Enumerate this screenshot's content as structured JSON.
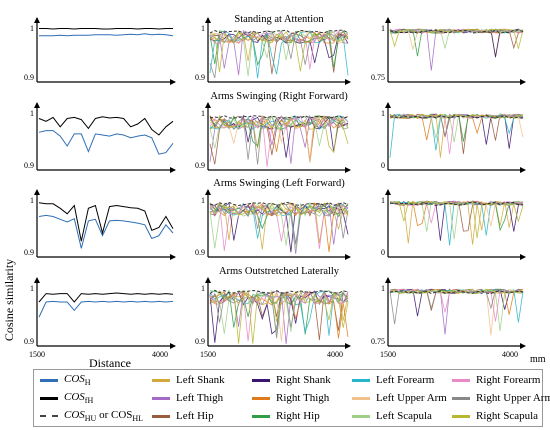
{
  "ylabel": "Cosine similarity",
  "xlabel": "Distance",
  "xunit": "mm",
  "chart_data": {
    "type": "line",
    "x_ticks": [
      1500,
      4000
    ],
    "rows": [
      {
        "title": "Standing at Attention",
        "panels": [
          {
            "y_ticks": [
              "1",
              "0.9"
            ],
            "ylim": [
              0.9,
              1.0
            ],
            "series": [
              {
                "key": "COS_H",
                "values": [
                  0.985,
                  0.985,
                  0.985,
                  0.986,
                  0.985,
                  0.986,
                  0.986,
                  0.986,
                  0.987,
                  0.987,
                  0.987,
                  0.986,
                  0.987,
                  0.988,
                  0.987,
                  0.989,
                  0.987,
                  0.988,
                  0.987,
                  0.985
                ]
              },
              {
                "key": "COS_fH",
                "values": [
                  0.999,
                  0.999,
                  0.998,
                  0.999,
                  0.999,
                  0.998,
                  0.999,
                  0.999,
                  0.999,
                  0.998,
                  0.998,
                  0.999,
                  0.999,
                  0.999,
                  0.998,
                  0.999,
                  0.999,
                  0.998,
                  0.999,
                  0.999
                ]
              }
            ]
          },
          {
            "y_ticks": [
              "1",
              "0.9"
            ],
            "ylim": [
              0.9,
              1.0
            ],
            "dense": true
          },
          {
            "y_ticks": [
              "1",
              "0.75"
            ],
            "ylim": [
              0.75,
              1.0
            ],
            "dense": true
          }
        ]
      },
      {
        "title": "Arms Swinging (Right Forward)",
        "panels": [
          {
            "y_ticks": [
              "1",
              "0.9"
            ],
            "ylim": [
              0.9,
              1.0
            ],
            "series": [
              {
                "key": "COS_H",
                "values": [
                  0.965,
                  0.968,
                  0.968,
                  0.958,
                  0.94,
                  0.962,
                  0.962,
                  0.93,
                  0.962,
                  0.96,
                  0.958,
                  0.962,
                  0.96,
                  0.955,
                  0.958,
                  0.96,
                  0.955,
                  0.925,
                  0.928,
                  0.945
                ]
              },
              {
                "key": "COS_fH",
                "values": [
                  0.99,
                  0.985,
                  0.992,
                  0.975,
                  0.99,
                  0.992,
                  0.988,
                  0.972,
                  0.99,
                  0.993,
                  0.991,
                  0.992,
                  0.99,
                  0.975,
                  0.98,
                  0.99,
                  0.97,
                  0.96,
                  0.975,
                  0.985
                ]
              }
            ]
          },
          {
            "y_ticks": [
              "1",
              "0.9"
            ],
            "ylim": [
              0.9,
              1.0
            ],
            "dense": true
          },
          {
            "y_ticks": [
              "1",
              "0"
            ],
            "ylim": [
              0.0,
              1.0
            ],
            "dense": true
          }
        ]
      },
      {
        "title": "Arms Swinging (Left Forward)",
        "panels": [
          {
            "y_ticks": [
              "1",
              "0.9"
            ],
            "ylim": [
              0.9,
              1.0
            ],
            "series": [
              {
                "key": "COS_H",
                "values": [
                  0.97,
                  0.972,
                  0.97,
                  0.965,
                  0.96,
                  0.966,
                  0.912,
                  0.962,
                  0.965,
                  0.935,
                  0.962,
                  0.963,
                  0.962,
                  0.96,
                  0.958,
                  0.955,
                  0.93,
                  0.935,
                  0.955,
                  0.94
                ]
              },
              {
                "key": "COS_fH",
                "values": [
                  0.995,
                  0.993,
                  0.993,
                  0.985,
                  0.975,
                  0.99,
                  0.925,
                  0.985,
                  0.99,
                  0.94,
                  0.988,
                  0.99,
                  0.988,
                  0.986,
                  0.985,
                  0.98,
                  0.945,
                  0.95,
                  0.97,
                  0.948
                ]
              }
            ]
          },
          {
            "y_ticks": [
              "1",
              "0.9"
            ],
            "ylim": [
              0.9,
              1.0
            ],
            "dense": true
          },
          {
            "y_ticks": [
              "1",
              "0"
            ],
            "ylim": [
              0.0,
              1.0
            ],
            "dense": true
          }
        ]
      },
      {
        "title": "Arms Outstretched Laterally",
        "panels": [
          {
            "y_ticks": [
              "1",
              "0.9"
            ],
            "ylim": [
              0.9,
              1.0
            ],
            "series": [
              {
                "key": "COS_H",
                "values": [
                  0.948,
                  0.975,
                  0.976,
                  0.975,
                  0.975,
                  0.96,
                  0.975,
                  0.976,
                  0.975,
                  0.976,
                  0.975,
                  0.976,
                  0.975,
                  0.976,
                  0.975,
                  0.976,
                  0.975,
                  0.976,
                  0.975,
                  0.976
                ]
              },
              {
                "key": "COS_fH",
                "values": [
                  0.975,
                  0.99,
                  0.989,
                  0.99,
                  0.99,
                  0.975,
                  0.99,
                  0.989,
                  0.99,
                  0.989,
                  0.99,
                  0.991,
                  0.99,
                  0.989,
                  0.99,
                  0.989,
                  0.99,
                  0.989,
                  0.99,
                  0.989
                ]
              }
            ]
          },
          {
            "y_ticks": [
              "1",
              "0.9"
            ],
            "ylim": [
              0.9,
              1.0
            ],
            "dense": true
          },
          {
            "y_ticks": [
              "1",
              "0.75"
            ],
            "ylim": [
              0.75,
              1.0
            ],
            "dense": true
          }
        ]
      }
    ]
  },
  "legend": [
    {
      "key": "COS_H",
      "label": "COS",
      "sub": "H",
      "color": "#2f6fb5",
      "style": "solid"
    },
    {
      "key": "COS_fH",
      "label": "COS",
      "sub": "fH",
      "color": "#000000",
      "style": "solid"
    },
    {
      "key": "COS_HU",
      "label": "COS",
      "sub": "HU",
      "label2": " or COS",
      "sub2": "HL",
      "color": "#444444",
      "style": "dashed"
    },
    {
      "key": "left_shank",
      "label": "Left Shank",
      "color": "#d4a93c",
      "style": "solid"
    },
    {
      "key": "left_thigh",
      "label": "Left Thigh",
      "color": "#a46bc6",
      "style": "solid"
    },
    {
      "key": "left_hip",
      "label": "Left Hip",
      "color": "#9a5a3c",
      "style": "solid"
    },
    {
      "key": "right_shank",
      "label": "Right Shank",
      "color": "#3a1670",
      "style": "solid"
    },
    {
      "key": "right_thigh",
      "label": "Right Thigh",
      "color": "#e07b1c",
      "style": "solid"
    },
    {
      "key": "right_hip",
      "label": "Right Hip",
      "color": "#2f9e44",
      "style": "solid"
    },
    {
      "key": "left_forearm",
      "label": "Left Forearm",
      "color": "#29b5c9",
      "style": "solid"
    },
    {
      "key": "left_upper_arm",
      "label": "Left Upper Arm",
      "color": "#f2c08a",
      "style": "solid"
    },
    {
      "key": "left_scapula",
      "label": "Left Scapula",
      "color": "#9ed08a",
      "style": "solid"
    },
    {
      "key": "right_forearm",
      "label": "Right Forearm",
      "color": "#e88ac6",
      "style": "solid"
    },
    {
      "key": "right_upper_arm",
      "label": "Right Upper Arm",
      "color": "#888888",
      "style": "solid"
    },
    {
      "key": "right_scapula",
      "label": "Right Scapula",
      "color": "#b8b830",
      "style": "solid"
    }
  ]
}
